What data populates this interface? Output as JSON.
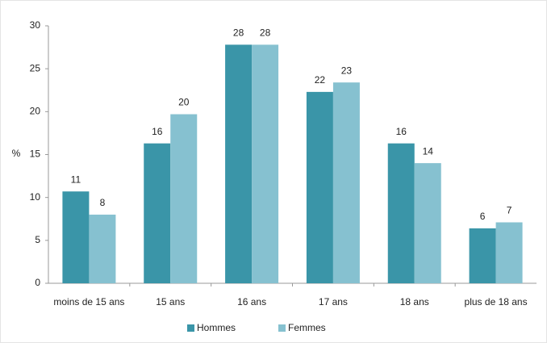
{
  "chart_data": {
    "type": "bar",
    "y_label": "%",
    "categories": [
      "moins de 15 ans",
      "15 ans",
      "16 ans",
      "17 ans",
      "18 ans",
      "plus de 18 ans"
    ],
    "series": [
      {
        "name": "Hommes",
        "color": "#3a95a8",
        "values": [
          10.7,
          16.3,
          27.8,
          22.3,
          16.3,
          6.4
        ],
        "value_labels": [
          "11",
          "16",
          "28",
          "22",
          "16",
          "6"
        ]
      },
      {
        "name": "Femmes",
        "color": "#86c1d0",
        "values": [
          8,
          19.7,
          27.8,
          23.4,
          14,
          7.1
        ],
        "value_labels": [
          "8",
          "20",
          "28",
          "23",
          "14",
          "7"
        ]
      }
    ],
    "ylim": [
      0,
      30
    ],
    "yticks": [
      0,
      5,
      10,
      15,
      20,
      25,
      30
    ],
    "grid": false,
    "legend": "bottom"
  }
}
